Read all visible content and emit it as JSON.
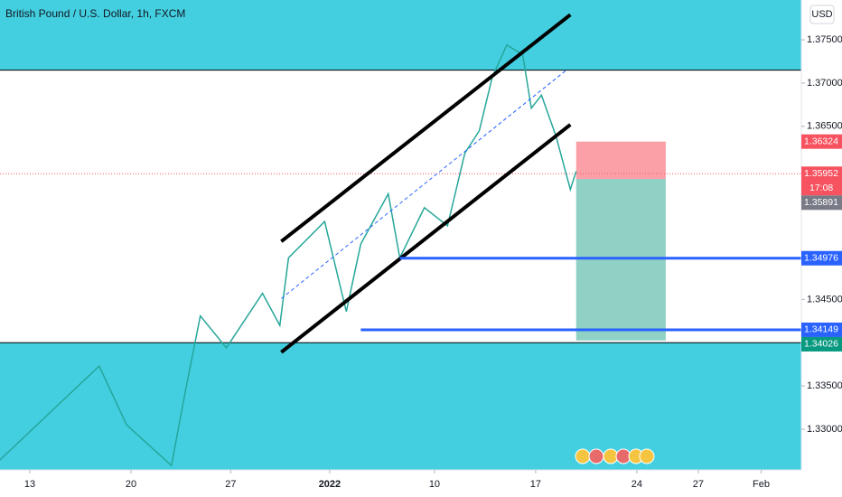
{
  "chart_data": {
    "type": "line",
    "title": "British Pound / U.S. Dollar, 1h, FXCM",
    "currency": "USD",
    "countdown": "17:08",
    "x": [
      -2.1,
      4.8,
      6.7,
      9.8,
      10.8,
      11.8,
      13.6,
      16.1,
      17.3,
      17.9,
      20.4,
      21.9,
      22.9,
      24.8,
      25.6,
      27.3,
      28.9,
      30.1,
      31.1,
      32.0,
      33.0,
      34.1,
      34.7,
      35.4,
      36.4,
      37.4,
      37.8
    ],
    "series": [
      {
        "name": "GBPUSD",
        "color": "#26a69a",
        "values": [
          1.3264,
          1.3373,
          1.3305,
          1.3258,
          1.3347,
          1.3431,
          1.3394,
          1.3457,
          1.342,
          1.3498,
          1.354,
          1.3436,
          1.3514,
          1.3572,
          1.3498,
          1.3556,
          1.3535,
          1.3619,
          1.3645,
          1.3707,
          1.3744,
          1.3733,
          1.3671,
          1.3686,
          1.3639,
          1.3577,
          1.3598
        ]
      }
    ],
    "xlim": [
      -2.06,
      53.38
    ],
    "xticks": [
      {
        "value": 0,
        "label": "13"
      },
      {
        "value": 7,
        "label": "20"
      },
      {
        "value": 13.9,
        "label": "27"
      },
      {
        "value": 20.75,
        "label": "2022"
      },
      {
        "value": 28,
        "label": "10"
      },
      {
        "value": 35,
        "label": "17"
      },
      {
        "value": 42,
        "label": "24"
      },
      {
        "value": 46.25,
        "label": "27"
      },
      {
        "value": 50.6,
        "label": "Feb"
      }
    ],
    "ylim": [
      1.3253,
      1.3796
    ],
    "yticks": [
      {
        "value": 1.33,
        "label": "1.33000"
      },
      {
        "value": 1.335,
        "label": "1.33500"
      },
      {
        "value": 1.345,
        "label": "1.34500"
      },
      {
        "value": 1.365,
        "label": "1.36500"
      },
      {
        "value": 1.37,
        "label": "1.37000"
      },
      {
        "value": 1.375,
        "label": "1.37500"
      }
    ],
    "zones": [
      {
        "from": 1.3715,
        "to": 1.3796,
        "color": "#43cfe0"
      },
      {
        "from": 1.3253,
        "to": 1.34,
        "color": "#43cfe0"
      }
    ],
    "trend_lines": [
      {
        "x": [
          17.4,
          37.4
        ],
        "y": [
          1.3517,
          1.3779
        ],
        "color": "#000000",
        "width": 4
      },
      {
        "x": [
          17.4,
          37.4
        ],
        "y": [
          1.3389,
          1.3652
        ],
        "color": "#000000",
        "width": 4
      },
      {
        "x": [
          17.4,
          37.2
        ],
        "y": [
          1.3451,
          1.3716
        ],
        "color": "#2962ff",
        "width": 1,
        "dashed": true
      }
    ],
    "levels": [
      {
        "value": 1.34976,
        "from": 25.6,
        "color": "#2962ff"
      },
      {
        "value": 1.34149,
        "from": 22.9,
        "color": "#2962ff"
      }
    ],
    "position": {
      "x": [
        37.8,
        44.0
      ],
      "entry": 1.35891,
      "stop": 1.36324,
      "target": 1.34026
    },
    "price_labels": [
      {
        "value": 1.36324,
        "label": "1.36324",
        "color": "#f7525f"
      },
      {
        "value": 1.35952,
        "label": "1.35952",
        "color": "#f7525f"
      },
      {
        "value": 1.35891,
        "label": "1.35891",
        "color": "#787b86"
      },
      {
        "value": 1.34976,
        "label": "1.34976",
        "color": "#2962ff"
      },
      {
        "value": 1.34149,
        "label": "1.34149",
        "color": "#2962ff"
      },
      {
        "value": 1.34026,
        "label": "1.34026",
        "color": "#089981"
      }
    ],
    "last_price": 1.35952
  }
}
